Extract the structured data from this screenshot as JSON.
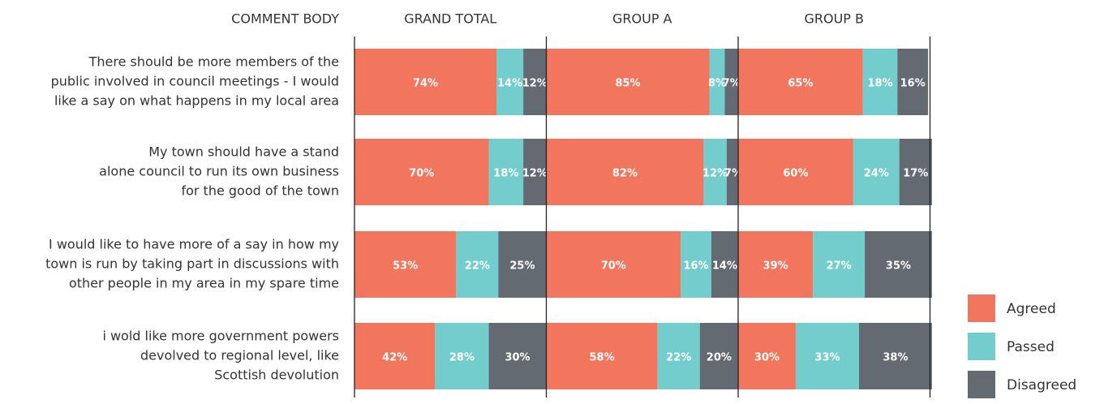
{
  "chart_data": {
    "type": "bar",
    "category_header": "COMMENT BODY",
    "categories": [
      [
        "There should be more members of the",
        "public involved in council meetings - I would",
        "like a say on what happens in my local area"
      ],
      [
        "My town should have a stand",
        "alone council to run its own business",
        "for the good of the town"
      ],
      [
        "I would like to have more of a say in how my",
        "town is run by taking part in discussions with",
        "other people in my area in my spare time"
      ],
      [
        "i wold like more government powers",
        "devolved to regional level, like",
        "Scottish devolution"
      ]
    ],
    "series": [
      {
        "name": "Agreed",
        "color": "#f2765d"
      },
      {
        "name": "Passed",
        "color": "#73cdcd"
      },
      {
        "name": "Disagreed",
        "color": "#646a71"
      }
    ],
    "xlim": [
      0,
      100
    ],
    "panels": [
      {
        "title": "GRAND TOTAL",
        "series": [
          {
            "values": [
              74,
              70,
              53,
              42
            ],
            "value_labels": [
              "74%",
              "70%",
              "53%",
              "42%"
            ]
          },
          {
            "values": [
              14,
              18,
              22,
              28
            ],
            "value_labels": [
              "14%",
              "18%",
              "22%",
              "28%"
            ]
          },
          {
            "values": [
              12,
              12,
              25,
              30
            ],
            "value_labels": [
              "12%",
              "12%",
              "25%",
              "30%"
            ]
          }
        ]
      },
      {
        "title": "GROUP A",
        "series": [
          {
            "values": [
              85,
              82,
              70,
              58
            ],
            "value_labels": [
              "85%",
              "82%",
              "70%",
              "58%"
            ]
          },
          {
            "values": [
              8,
              12,
              16,
              22
            ],
            "value_labels": [
              "8%",
              "12%",
              "16%",
              "22%"
            ]
          },
          {
            "values": [
              7,
              7,
              14,
              20
            ],
            "value_labels": [
              "7%",
              "7%",
              "14%",
              "20%"
            ]
          }
        ]
      },
      {
        "title": "GROUP B",
        "series": [
          {
            "values": [
              65,
              60,
              39,
              30
            ],
            "value_labels": [
              "65%",
              "60%",
              "39%",
              "30%"
            ]
          },
          {
            "values": [
              18,
              24,
              27,
              33
            ],
            "value_labels": [
              "18%",
              "24%",
              "27%",
              "33%"
            ]
          },
          {
            "values": [
              16,
              17,
              35,
              38
            ],
            "value_labels": [
              "16%",
              "17%",
              "35%",
              "38%"
            ]
          }
        ]
      }
    ]
  }
}
